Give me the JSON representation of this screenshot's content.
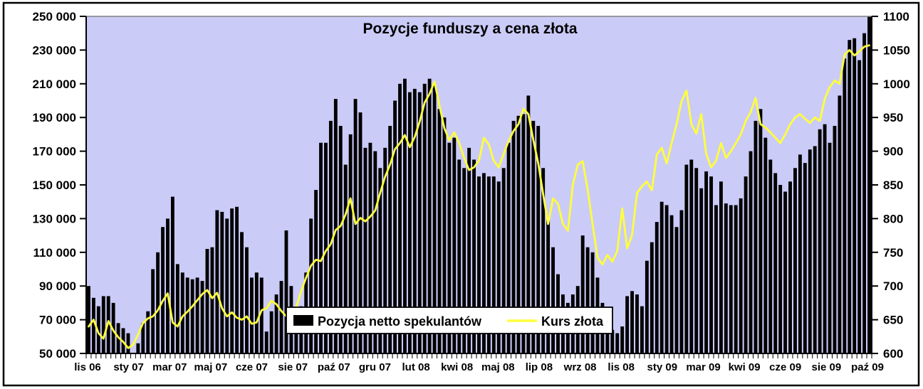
{
  "figure": {
    "title": "Pozycje funduszy a cena złota"
  },
  "colors": {
    "plot_background": "#CBCBF8",
    "bar": "#000000",
    "line": "#FFFF3C",
    "frame": "#000000",
    "plot_top_border": "#808080",
    "outer_background": "#FFFFFF"
  },
  "legend": {
    "bar_series_label": "Pozycja netto spekulantów",
    "line_series_label": "Kurs złota"
  },
  "chart_data": {
    "type": "bar",
    "subtype": "bar+line dual axis, weekly data Nov 2006 - Oct 2009",
    "title": "Pozycje funduszy a cena złota",
    "grid": false,
    "legend_position": "inside-bottom-center",
    "left_axis": {
      "min": 50000,
      "max": 250000,
      "step": 20000,
      "tick_labels": [
        "250 000",
        "230 000",
        "210 000",
        "190 000",
        "170 000",
        "150 000",
        "130 000",
        "110 000",
        "90 000",
        "70 000",
        "50 000"
      ]
    },
    "right_axis": {
      "min": 600,
      "max": 1100,
      "step": 50,
      "tick_labels": [
        "1100",
        "1050",
        "1000",
        "950",
        "900",
        "850",
        "800",
        "750",
        "700",
        "650",
        "600"
      ]
    },
    "x_tick_labels": [
      "lis 06",
      "sty 07",
      "mar 07",
      "maj 07",
      "cze 07",
      "sie 07",
      "paź 07",
      "gru 07",
      "lut 08",
      "kwi 08",
      "maj 08",
      "lip 08",
      "wrz 08",
      "lis 08",
      "sty 09",
      "mar 09",
      "kwi 09",
      "cze 09",
      "sie 09",
      "paź 09"
    ],
    "series": [
      {
        "name": "Pozycja netto spekulantów",
        "type": "bar",
        "axis": "left",
        "color": "#000000",
        "values": [
          90000,
          83000,
          78000,
          84000,
          84000,
          80000,
          68000,
          65000,
          62000,
          50000,
          56000,
          68000,
          75000,
          100000,
          110000,
          125000,
          130000,
          143000,
          103000,
          98000,
          95000,
          94000,
          95000,
          93000,
          112000,
          113000,
          135000,
          134000,
          130000,
          136000,
          137000,
          122000,
          113000,
          95000,
          98000,
          95000,
          63000,
          75000,
          85000,
          93000,
          123000,
          90000,
          75000,
          78000,
          98000,
          130000,
          147000,
          175000,
          175000,
          188000,
          201000,
          185000,
          162000,
          180000,
          201000,
          193000,
          172000,
          175000,
          170000,
          160000,
          172000,
          185000,
          200000,
          210000,
          213000,
          205000,
          207000,
          205000,
          210000,
          213000,
          209000,
          195000,
          190000,
          175000,
          178000,
          165000,
          160000,
          172000,
          165000,
          155000,
          157000,
          155000,
          155000,
          152000,
          160000,
          175000,
          188000,
          191000,
          192000,
          203000,
          188000,
          185000,
          160000,
          130000,
          113000,
          97000,
          85000,
          80000,
          85000,
          90000,
          120000,
          113000,
          110000,
          95000,
          80000,
          65000,
          64000,
          62000,
          66000,
          84000,
          87000,
          85000,
          78000,
          105000,
          116000,
          128000,
          140000,
          138000,
          132000,
          125000,
          135000,
          162000,
          165000,
          160000,
          148000,
          158000,
          155000,
          138000,
          152000,
          139000,
          138000,
          138000,
          142000,
          155000,
          170000,
          188000,
          195000,
          178000,
          165000,
          157000,
          150000,
          146000,
          152000,
          160000,
          168000,
          163000,
          171000,
          173000,
          183000,
          186000,
          175000,
          185000,
          203000,
          225000,
          236000,
          237000,
          224000,
          240000,
          250000
        ]
      },
      {
        "name": "Kurs złota",
        "type": "line",
        "axis": "right",
        "color": "#FFFF3C",
        "values": [
          640,
          650,
          630,
          622,
          648,
          634,
          624,
          617,
          608,
          613,
          628,
          645,
          652,
          655,
          664,
          678,
          689,
          646,
          640,
          655,
          662,
          670,
          679,
          688,
          694,
          682,
          690,
          667,
          655,
          661,
          653,
          650,
          655,
          644,
          646,
          664,
          667,
          678,
          673,
          663,
          655,
          658,
          668,
          692,
          712,
          730,
          739,
          737,
          752,
          762,
          783,
          789,
          806,
          830,
          792,
          801,
          796,
          803,
          812,
          838,
          862,
          880,
          903,
          912,
          924,
          906,
          921,
          944,
          972,
          985,
          1003,
          968,
          934,
          916,
          928,
          912,
          890,
          872,
          876,
          886,
          920,
          910,
          886,
          876,
          896,
          915,
          930,
          940,
          963,
          955,
          917,
          882,
          836,
          792,
          830,
          822,
          792,
          782,
          850,
          880,
          885,
          843,
          792,
          742,
          732,
          746,
          736,
          752,
          815,
          756,
          776,
          838,
          848,
          855,
          842,
          895,
          905,
          882,
          912,
          940,
          974,
          990,
          940,
          926,
          955,
          896,
          876,
          886,
          912,
          890,
          900,
          912,
          925,
          945,
          958,
          979,
          940,
          935,
          928,
          920,
          912,
          925,
          940,
          950,
          955,
          948,
          942,
          950,
          945,
          978,
          995,
          1005,
          1000,
          1043,
          1050,
          1042,
          1048,
          1055,
          1057
        ]
      }
    ]
  }
}
